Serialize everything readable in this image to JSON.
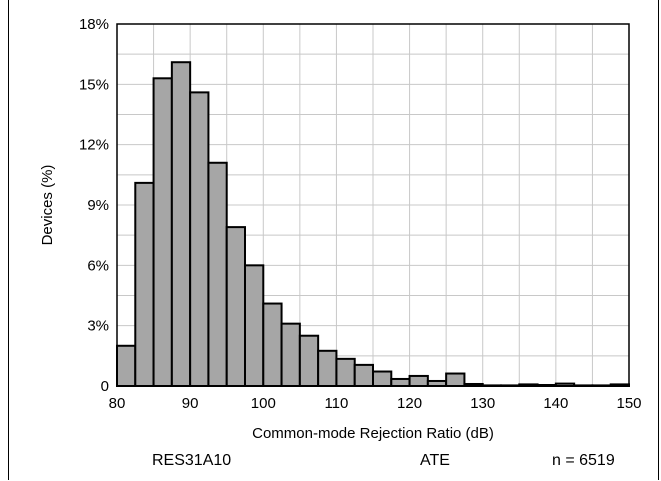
{
  "chart_data": {
    "type": "bar",
    "xlabel": "Common-mode Rejection Ratio (dB)",
    "ylabel": "Devices (%)",
    "xlim": [
      80,
      150
    ],
    "ylim": [
      0,
      18
    ],
    "bin_width": 2.5,
    "x_ticks": [
      "80",
      "90",
      "100",
      "110",
      "120",
      "130",
      "140",
      "150"
    ],
    "y_ticks": [
      "0",
      "3%",
      "6%",
      "9%",
      "12%",
      "15%",
      "18%"
    ],
    "grid": true,
    "bar_color": "#a6a6a6",
    "bins": [
      {
        "x": 80.0,
        "value": 2.0
      },
      {
        "x": 82.5,
        "value": 10.1
      },
      {
        "x": 85.0,
        "value": 15.3
      },
      {
        "x": 87.5,
        "value": 16.1
      },
      {
        "x": 90.0,
        "value": 14.6
      },
      {
        "x": 92.5,
        "value": 11.1
      },
      {
        "x": 95.0,
        "value": 7.9
      },
      {
        "x": 97.5,
        "value": 6.0
      },
      {
        "x": 100.0,
        "value": 4.1
      },
      {
        "x": 102.5,
        "value": 3.1
      },
      {
        "x": 105.0,
        "value": 2.5
      },
      {
        "x": 107.5,
        "value": 1.75
      },
      {
        "x": 110.0,
        "value": 1.35
      },
      {
        "x": 112.5,
        "value": 1.05
      },
      {
        "x": 115.0,
        "value": 0.72
      },
      {
        "x": 117.5,
        "value": 0.35
      },
      {
        "x": 120.0,
        "value": 0.5
      },
      {
        "x": 122.5,
        "value": 0.25
      },
      {
        "x": 125.0,
        "value": 0.62
      },
      {
        "x": 127.5,
        "value": 0.1
      },
      {
        "x": 130.0,
        "value": 0.03
      },
      {
        "x": 132.5,
        "value": 0.03
      },
      {
        "x": 135.0,
        "value": 0.08
      },
      {
        "x": 137.5,
        "value": 0.05
      },
      {
        "x": 140.0,
        "value": 0.12
      },
      {
        "x": 142.5,
        "value": 0.03
      },
      {
        "x": 145.0,
        "value": 0.03
      },
      {
        "x": 147.5,
        "value": 0.08
      }
    ]
  },
  "footer": {
    "part": "RES31A10",
    "method": "ATE",
    "count": "n = 6519"
  }
}
